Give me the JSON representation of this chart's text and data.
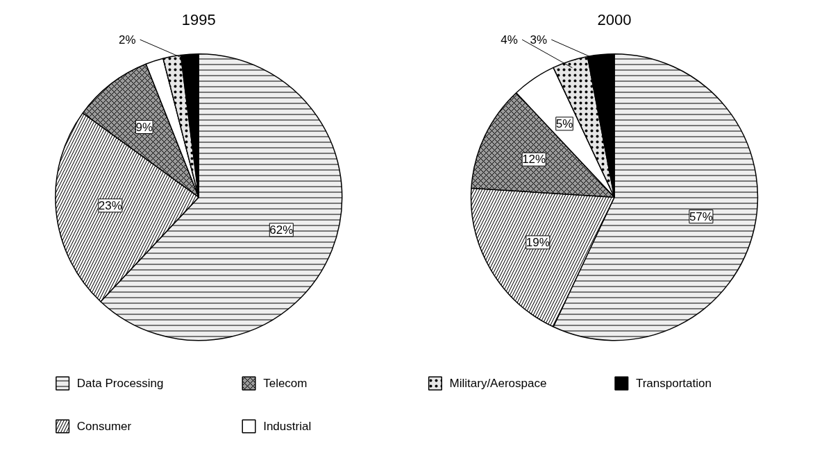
{
  "chart_data": {
    "type": "pie",
    "categories": [
      "Data Processing",
      "Consumer",
      "Telecom",
      "Industrial",
      "Military/Aerospace",
      "Transportation"
    ],
    "colors": [
      "#eeeeee",
      "#f6f6f6",
      "#9a9a9a",
      "#ffffff",
      "#e6e6e6",
      "#000000"
    ],
    "legend": "bottom",
    "series": [
      {
        "name": "1995",
        "values": [
          62,
          23,
          9,
          2,
          2,
          2
        ],
        "value_labels": [
          "62%",
          "23%",
          "9%",
          null,
          null,
          "2%"
        ]
      },
      {
        "name": "2000",
        "values": [
          57,
          19,
          12,
          5,
          4,
          3
        ],
        "value_labels": [
          "57%",
          "19%",
          "12%",
          "5%",
          "4%",
          "3%"
        ]
      }
    ]
  }
}
